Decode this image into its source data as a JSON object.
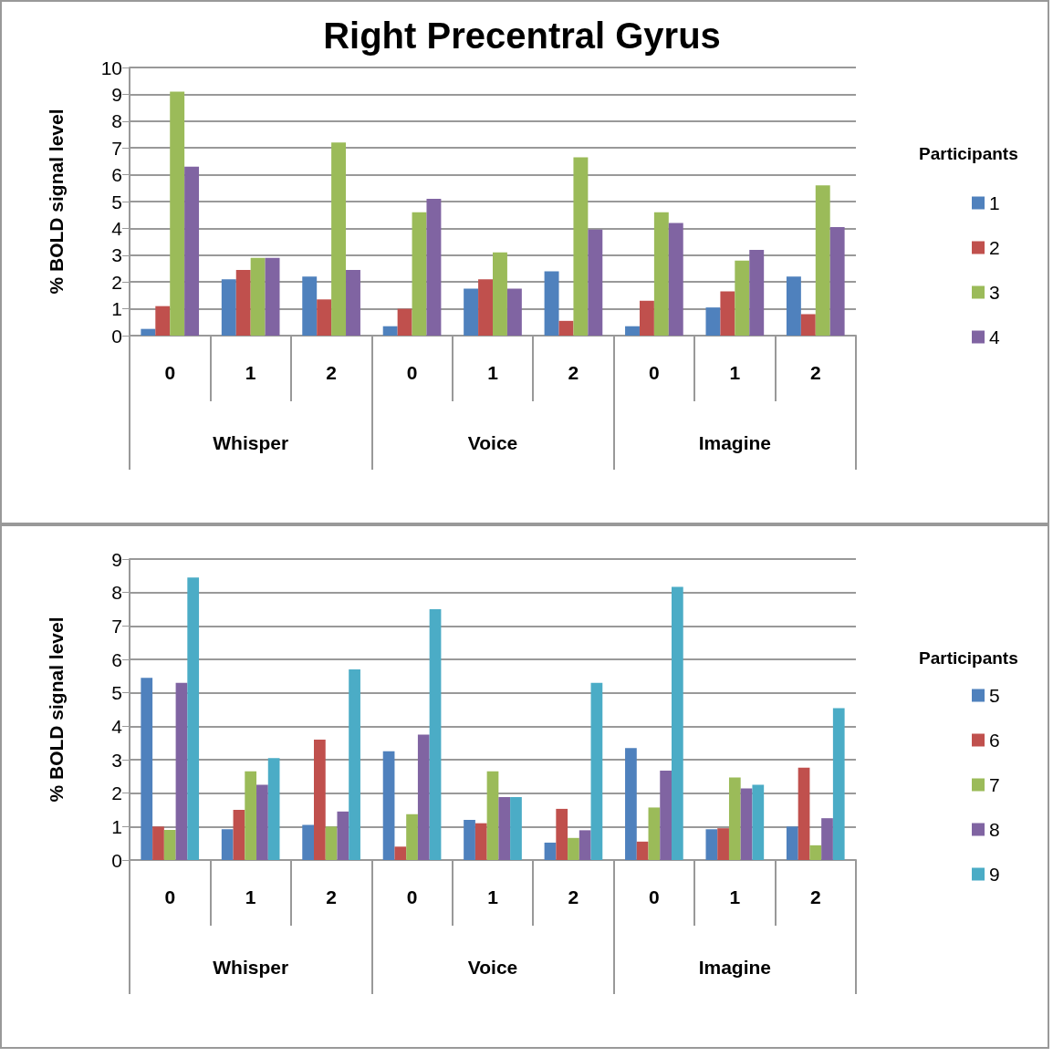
{
  "chart_data": [
    {
      "type": "bar",
      "title": "Right Precentral Gyrus",
      "ylabel": "% BOLD signal level",
      "legend_title": "Participants",
      "categories": [
        "0",
        "1",
        "2",
        "0",
        "1",
        "2",
        "0",
        "1",
        "2"
      ],
      "annotations": [
        "Whisper",
        "Voice",
        "Imagine"
      ],
      "series": [
        {
          "name": "1",
          "color": "#4f81bd",
          "values": [
            0.25,
            2.1,
            2.2,
            0.35,
            1.75,
            2.4,
            0.35,
            1.05,
            2.2
          ]
        },
        {
          "name": "2",
          "color": "#c0504d",
          "values": [
            1.1,
            2.45,
            1.35,
            1.0,
            2.1,
            0.55,
            1.3,
            1.65,
            0.8
          ]
        },
        {
          "name": "3",
          "color": "#9bbb59",
          "values": [
            9.1,
            2.9,
            7.2,
            4.6,
            3.1,
            6.65,
            4.6,
            2.8,
            5.6
          ]
        },
        {
          "name": "4",
          "color": "#8064a2",
          "values": [
            6.3,
            2.9,
            2.45,
            5.1,
            1.75,
            3.95,
            4.2,
            3.2,
            4.05
          ]
        }
      ],
      "ylim": [
        0,
        10
      ],
      "yticks": [
        0,
        1,
        2,
        3,
        4,
        5,
        6,
        7,
        8,
        9,
        10
      ],
      "grid": "y",
      "legend": "right"
    },
    {
      "type": "bar",
      "ylabel": "% BOLD signal level",
      "legend_title": "Participants",
      "categories": [
        "0",
        "1",
        "2",
        "0",
        "1",
        "2",
        "0",
        "1",
        "2"
      ],
      "annotations": [
        "Whisper",
        "Voice",
        "Imagine"
      ],
      "series": [
        {
          "name": "5",
          "color": "#4f81bd",
          "values": [
            5.45,
            0.92,
            1.05,
            3.25,
            1.2,
            0.52,
            3.35,
            0.92,
            1.0
          ]
        },
        {
          "name": "6",
          "color": "#c0504d",
          "values": [
            1.0,
            1.5,
            3.6,
            0.4,
            1.1,
            1.53,
            0.55,
            0.95,
            2.76
          ]
        },
        {
          "name": "7",
          "color": "#9bbb59",
          "values": [
            0.9,
            2.65,
            1.0,
            1.37,
            2.65,
            0.66,
            1.57,
            2.47,
            0.44
          ]
        },
        {
          "name": "8",
          "color": "#8064a2",
          "values": [
            5.3,
            2.25,
            1.45,
            3.75,
            1.88,
            0.89,
            2.67,
            2.14,
            1.25
          ]
        },
        {
          "name": "9",
          "color": "#4bacc6",
          "values": [
            8.45,
            3.05,
            5.7,
            7.5,
            1.88,
            5.3,
            8.17,
            2.25,
            4.54
          ]
        }
      ],
      "ylim": [
        0,
        9
      ],
      "yticks": [
        0,
        1,
        2,
        3,
        4,
        5,
        6,
        7,
        8,
        9
      ],
      "grid": "y",
      "legend": "right"
    }
  ]
}
